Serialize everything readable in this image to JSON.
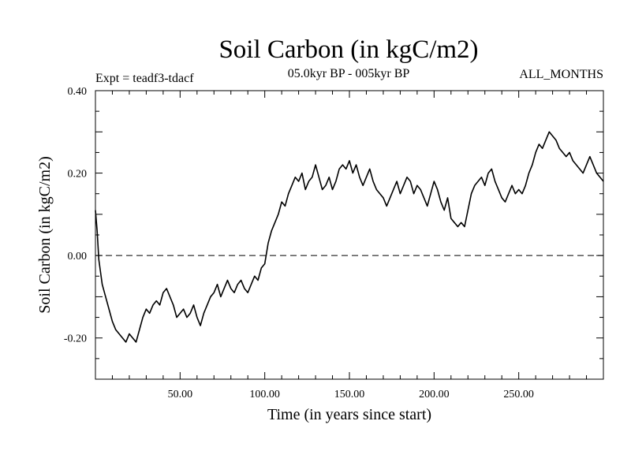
{
  "chart_data": {
    "type": "line",
    "title": "Soil Carbon (in kgC/m2)",
    "subtitle": "05.0kyr BP - 005kyr BP",
    "left_label": "Expt = teadf3-tdacf",
    "right_label": "ALL_MONTHS",
    "xlabel": "Time (in years since start)",
    "ylabel": "Soil Carbon (in kgC/m2)",
    "xlim": [
      0,
      300
    ],
    "ylim": [
      -0.3,
      0.4
    ],
    "xticks": [
      50,
      100,
      150,
      200,
      250
    ],
    "xtick_labels": [
      "50.00",
      "100.00",
      "150.00",
      "200.00",
      "250.00"
    ],
    "yticks": [
      -0.2,
      0.0,
      0.2,
      0.4
    ],
    "ytick_labels": [
      "-0.20",
      "0.00",
      "0.20",
      "0.40"
    ],
    "reference_line": {
      "y": 0.0,
      "style": "dashed"
    },
    "grid": false,
    "series": [
      {
        "name": "Soil Carbon",
        "color": "#000000",
        "x": [
          0,
          1,
          2,
          3,
          4,
          6,
          8,
          10,
          12,
          14,
          16,
          18,
          20,
          22,
          24,
          26,
          28,
          30,
          32,
          34,
          36,
          38,
          40,
          42,
          44,
          46,
          48,
          50,
          52,
          54,
          56,
          58,
          60,
          62,
          64,
          66,
          68,
          70,
          72,
          74,
          76,
          78,
          80,
          82,
          84,
          86,
          88,
          90,
          92,
          94,
          96,
          98,
          100,
          102,
          104,
          106,
          108,
          110,
          112,
          114,
          116,
          118,
          120,
          122,
          124,
          126,
          128,
          130,
          132,
          134,
          136,
          138,
          140,
          142,
          144,
          146,
          148,
          150,
          152,
          154,
          156,
          158,
          160,
          162,
          164,
          166,
          168,
          170,
          172,
          174,
          176,
          178,
          180,
          182,
          184,
          186,
          188,
          190,
          192,
          194,
          196,
          198,
          200,
          202,
          204,
          206,
          208,
          210,
          212,
          214,
          216,
          218,
          220,
          222,
          224,
          226,
          228,
          230,
          232,
          234,
          236,
          238,
          240,
          242,
          244,
          246,
          248,
          250,
          252,
          254,
          256,
          258,
          260,
          262,
          264,
          266,
          268,
          270,
          272,
          274,
          276,
          278,
          280,
          282,
          284,
          286,
          288,
          290,
          292,
          294,
          296,
          298,
          300
        ],
        "y": [
          0.11,
          0.06,
          -0.01,
          -0.04,
          -0.07,
          -0.1,
          -0.13,
          -0.16,
          -0.18,
          -0.19,
          -0.2,
          -0.21,
          -0.19,
          -0.2,
          -0.21,
          -0.18,
          -0.15,
          -0.13,
          -0.14,
          -0.12,
          -0.11,
          -0.12,
          -0.09,
          -0.08,
          -0.1,
          -0.12,
          -0.15,
          -0.14,
          -0.13,
          -0.15,
          -0.14,
          -0.12,
          -0.15,
          -0.17,
          -0.14,
          -0.12,
          -0.1,
          -0.09,
          -0.07,
          -0.1,
          -0.08,
          -0.06,
          -0.08,
          -0.09,
          -0.07,
          -0.06,
          -0.08,
          -0.09,
          -0.07,
          -0.05,
          -0.06,
          -0.03,
          -0.02,
          0.03,
          0.06,
          0.08,
          0.1,
          0.13,
          0.12,
          0.15,
          0.17,
          0.19,
          0.18,
          0.2,
          0.16,
          0.18,
          0.19,
          0.22,
          0.19,
          0.16,
          0.17,
          0.19,
          0.16,
          0.18,
          0.21,
          0.22,
          0.21,
          0.23,
          0.2,
          0.22,
          0.19,
          0.17,
          0.19,
          0.21,
          0.18,
          0.16,
          0.15,
          0.14,
          0.12,
          0.14,
          0.16,
          0.18,
          0.15,
          0.17,
          0.19,
          0.18,
          0.15,
          0.17,
          0.16,
          0.14,
          0.12,
          0.15,
          0.18,
          0.16,
          0.13,
          0.11,
          0.14,
          0.09,
          0.08,
          0.07,
          0.08,
          0.07,
          0.11,
          0.15,
          0.17,
          0.18,
          0.19,
          0.17,
          0.2,
          0.21,
          0.18,
          0.16,
          0.14,
          0.13,
          0.15,
          0.17,
          0.15,
          0.16,
          0.15,
          0.17,
          0.2,
          0.22,
          0.25,
          0.27,
          0.26,
          0.28,
          0.3,
          0.29,
          0.28,
          0.26,
          0.25,
          0.24,
          0.25,
          0.23,
          0.22,
          0.21,
          0.2,
          0.22,
          0.24,
          0.22,
          0.2,
          0.19,
          0.18
        ]
      }
    ]
  }
}
